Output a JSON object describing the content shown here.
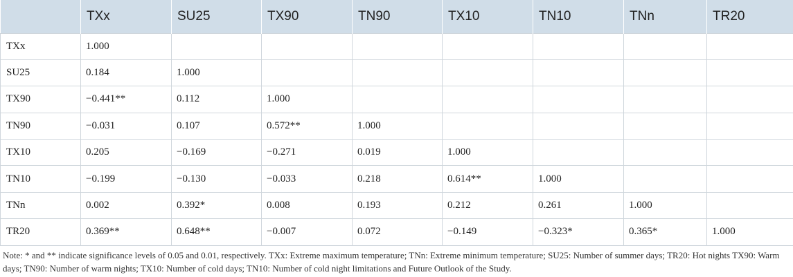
{
  "table": {
    "headers": [
      "",
      "TXx",
      "SU25",
      "TX90",
      "TN90",
      "TX10",
      "TN10",
      "TNn",
      "TR20"
    ],
    "rows": [
      {
        "label": "TXx",
        "cells": [
          "1.000",
          "",
          "",
          "",
          "",
          "",
          "",
          ""
        ]
      },
      {
        "label": "SU25",
        "cells": [
          "0.184",
          "1.000",
          "",
          "",
          "",
          "",
          "",
          ""
        ]
      },
      {
        "label": "TX90",
        "cells": [
          "−0.441**",
          "0.112",
          "1.000",
          "",
          "",
          "",
          "",
          ""
        ]
      },
      {
        "label": "TN90",
        "cells": [
          "−0.031",
          "0.107",
          "0.572**",
          "1.000",
          "",
          "",
          "",
          ""
        ]
      },
      {
        "label": "TX10",
        "cells": [
          "0.205",
          "−0.169",
          "−0.271",
          "0.019",
          "1.000",
          "",
          "",
          ""
        ]
      },
      {
        "label": "TN10",
        "cells": [
          "−0.199",
          "−0.130",
          "−0.033",
          "0.218",
          "0.614**",
          "1.000",
          "",
          ""
        ]
      },
      {
        "label": "TNn",
        "cells": [
          "0.002",
          "0.392*",
          "0.008",
          "0.193",
          "0.212",
          "0.261",
          "1.000",
          ""
        ]
      },
      {
        "label": "TR20",
        "cells": [
          "0.369**",
          "0.648**",
          "−0.007",
          "0.072",
          "−0.149",
          "−0.323*",
          "0.365*",
          "1.000"
        ]
      }
    ]
  },
  "note": "Note: * and ** indicate significance levels of 0.05 and 0.01, respectively. TXx: Extreme maximum temperature; TNn: Extreme minimum temperature; SU25: Number of summer days; TR20: Hot nights TX90: Warm days; TN90: Number of warm nights; TX10: Number of cold days; TN10: Number of cold night limitations and Future Outlook of the Study.",
  "colors": {
    "header_background": "#d0dde8",
    "grid_line": "#cfd6dc",
    "text": "#222222"
  }
}
